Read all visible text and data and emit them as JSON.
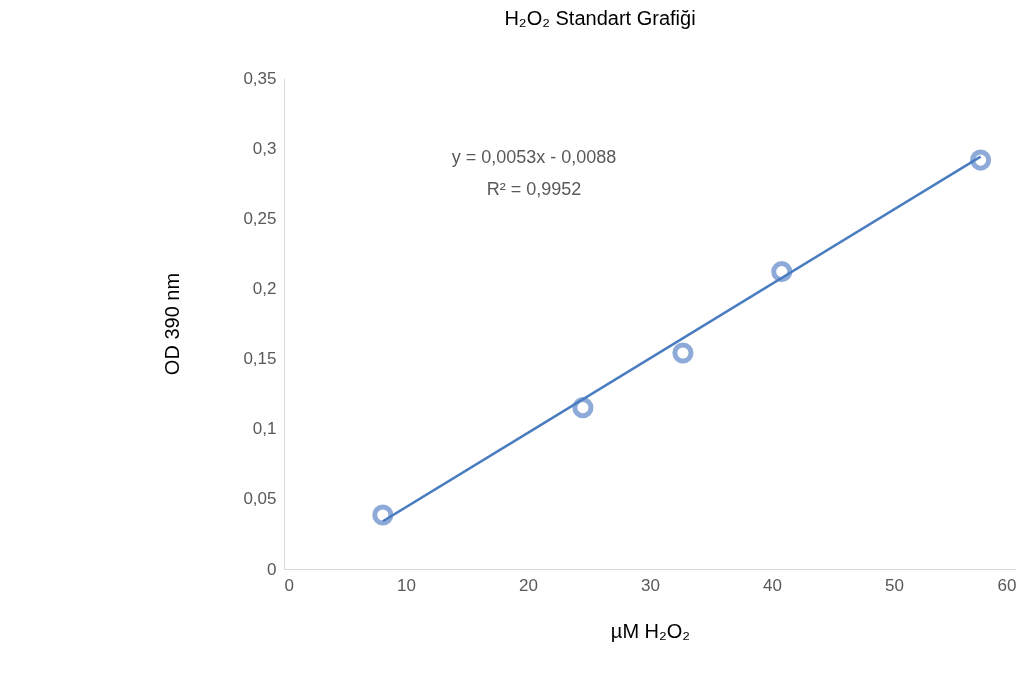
{
  "chart_data": {
    "type": "scatter",
    "title": "H₂O₂ Standart Grafiği",
    "xlabel": "µM H₂O₂",
    "ylabel": "OD  390 nm",
    "series": [
      {
        "marker": "circle",
        "color": "#8eaad8",
        "x": [
          8.1,
          24.5,
          32.7,
          40.8,
          57.1
        ],
        "values": [
          0.0385,
          0.115,
          0.154,
          0.212,
          0.2915
        ]
      },
      {
        "type": "line",
        "color": "#4a7dc0",
        "x": [
          8.1,
          57.1
        ],
        "values": [
          0.034,
          0.294
        ]
      }
    ],
    "annotations": [
      "y = 0,0053x - 0,0088",
      "R² = 0,9952"
    ],
    "xlim": [
      0,
      60
    ],
    "xticks": [
      0,
      10,
      20,
      30,
      40,
      50,
      60
    ],
    "ylim": [
      0,
      0.35
    ],
    "yticks": [
      {
        "value": 0,
        "label": "0"
      },
      {
        "value": 0.05,
        "label": "0,05"
      },
      {
        "value": 0.1,
        "label": "0,1"
      },
      {
        "value": 0.15,
        "label": "0,15"
      },
      {
        "value": 0.2,
        "label": "0,2"
      },
      {
        "value": 0.25,
        "label": "0,25"
      },
      {
        "value": 0.3,
        "label": "0,3"
      },
      {
        "value": 0.35,
        "label": "0,35"
      }
    ]
  }
}
